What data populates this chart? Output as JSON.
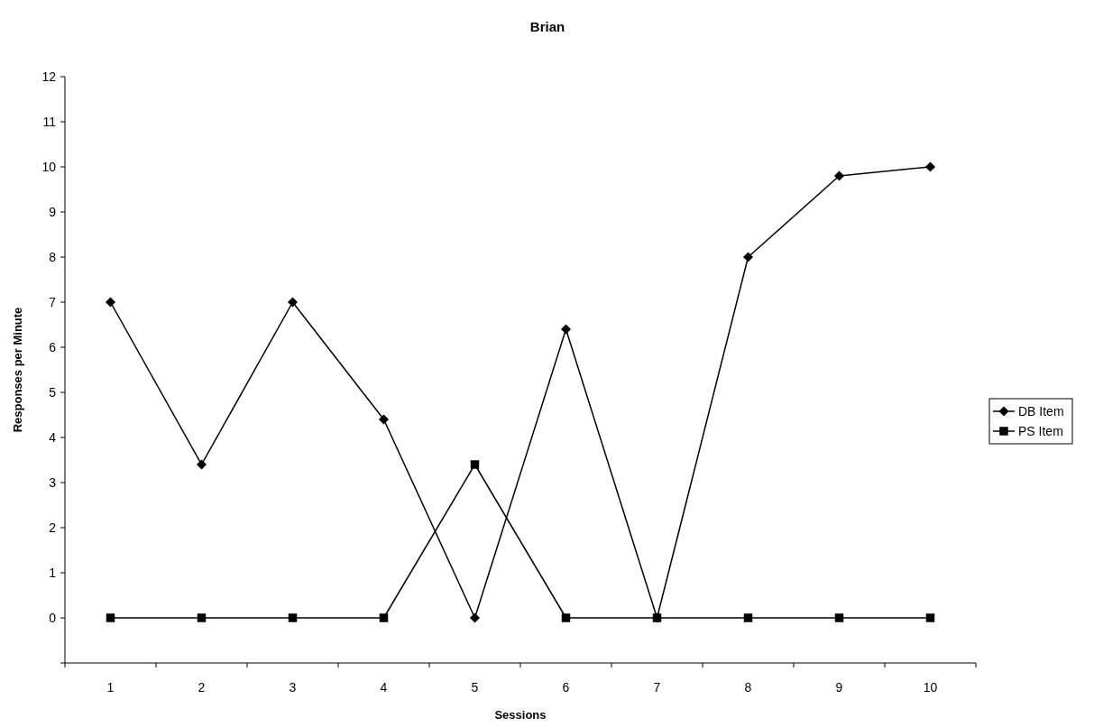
{
  "chart_data": {
    "type": "line",
    "title": "Brian",
    "xlabel": "Sessions",
    "ylabel": "Responses per Minute",
    "categories": [
      "1",
      "2",
      "3",
      "4",
      "5",
      "6",
      "7",
      "8",
      "9",
      "10"
    ],
    "series": [
      {
        "name": "DB Item",
        "color": "#000000",
        "marker": "diamond",
        "values": [
          7,
          3.4,
          7,
          4.4,
          0,
          6.4,
          0,
          8,
          9.8,
          10
        ]
      },
      {
        "name": "PS Item",
        "color": "#000000",
        "marker": "square",
        "values": [
          0,
          0,
          0,
          0,
          3.4,
          0,
          0,
          0,
          0,
          0
        ]
      }
    ],
    "ylim": [
      -1,
      12
    ],
    "yticks": [
      {
        "value": -1,
        "label": null
      },
      0,
      1,
      2,
      3,
      4,
      5,
      6,
      7,
      8,
      9,
      10,
      11,
      12
    ],
    "grid": false,
    "legend": "right",
    "line_style": "solid"
  }
}
